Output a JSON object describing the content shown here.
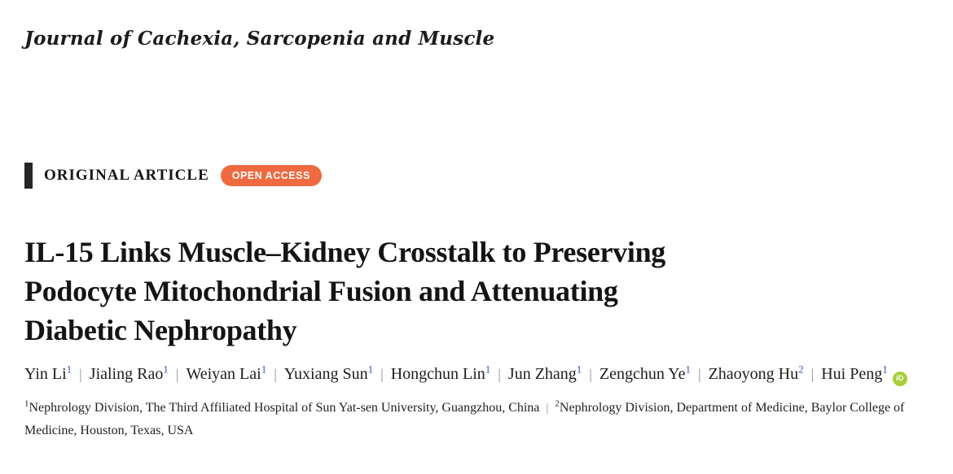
{
  "journal": {
    "name": "Journal of Cachexia, Sarcopenia and Muscle"
  },
  "banner": {
    "article_type_label": "ORIGINAL ARTICLE",
    "open_access_label": "OPEN ACCESS"
  },
  "article": {
    "title_lines": [
      "IL-15 Links Muscle–Kidney Crosstalk to Preserving",
      "Podocyte Mitochondrial Fusion and Attenuating",
      "Diabetic Nephropathy"
    ],
    "author_separator": "|",
    "orcid_icon_label": "iD",
    "authors": [
      {
        "name": "Yin Li",
        "sup": "1"
      },
      {
        "name": "Jialing Rao",
        "sup": "1"
      },
      {
        "name": "Weiyan Lai",
        "sup": "1"
      },
      {
        "name": "Yuxiang Sun",
        "sup": "1"
      },
      {
        "name": "Hongchun Lin",
        "sup": "1"
      },
      {
        "name": "Jun Zhang",
        "sup": "1"
      },
      {
        "name": "Zengchun Ye",
        "sup": "1"
      },
      {
        "name": "Zhaoyong Hu",
        "sup": "2"
      },
      {
        "name": "Hui Peng",
        "sup": "1",
        "orcid": true
      }
    ],
    "affiliation_separator": "|",
    "affiliations": [
      {
        "sup": "1",
        "text": "Nephrology Division, The Third Affiliated Hospital of Sun Yat-sen University, Guangzhou, China"
      },
      {
        "sup": "2",
        "text": "Nephrology Division, Department of Medicine, Baylor College of Medicine, Houston, Texas, USA"
      }
    ]
  },
  "colors": {
    "open_access_bg": "#EF6A40",
    "orcid_green": "#A6CE39",
    "superscript_blue": "#3853C6",
    "separator_gray": "#8E8E8E"
  }
}
